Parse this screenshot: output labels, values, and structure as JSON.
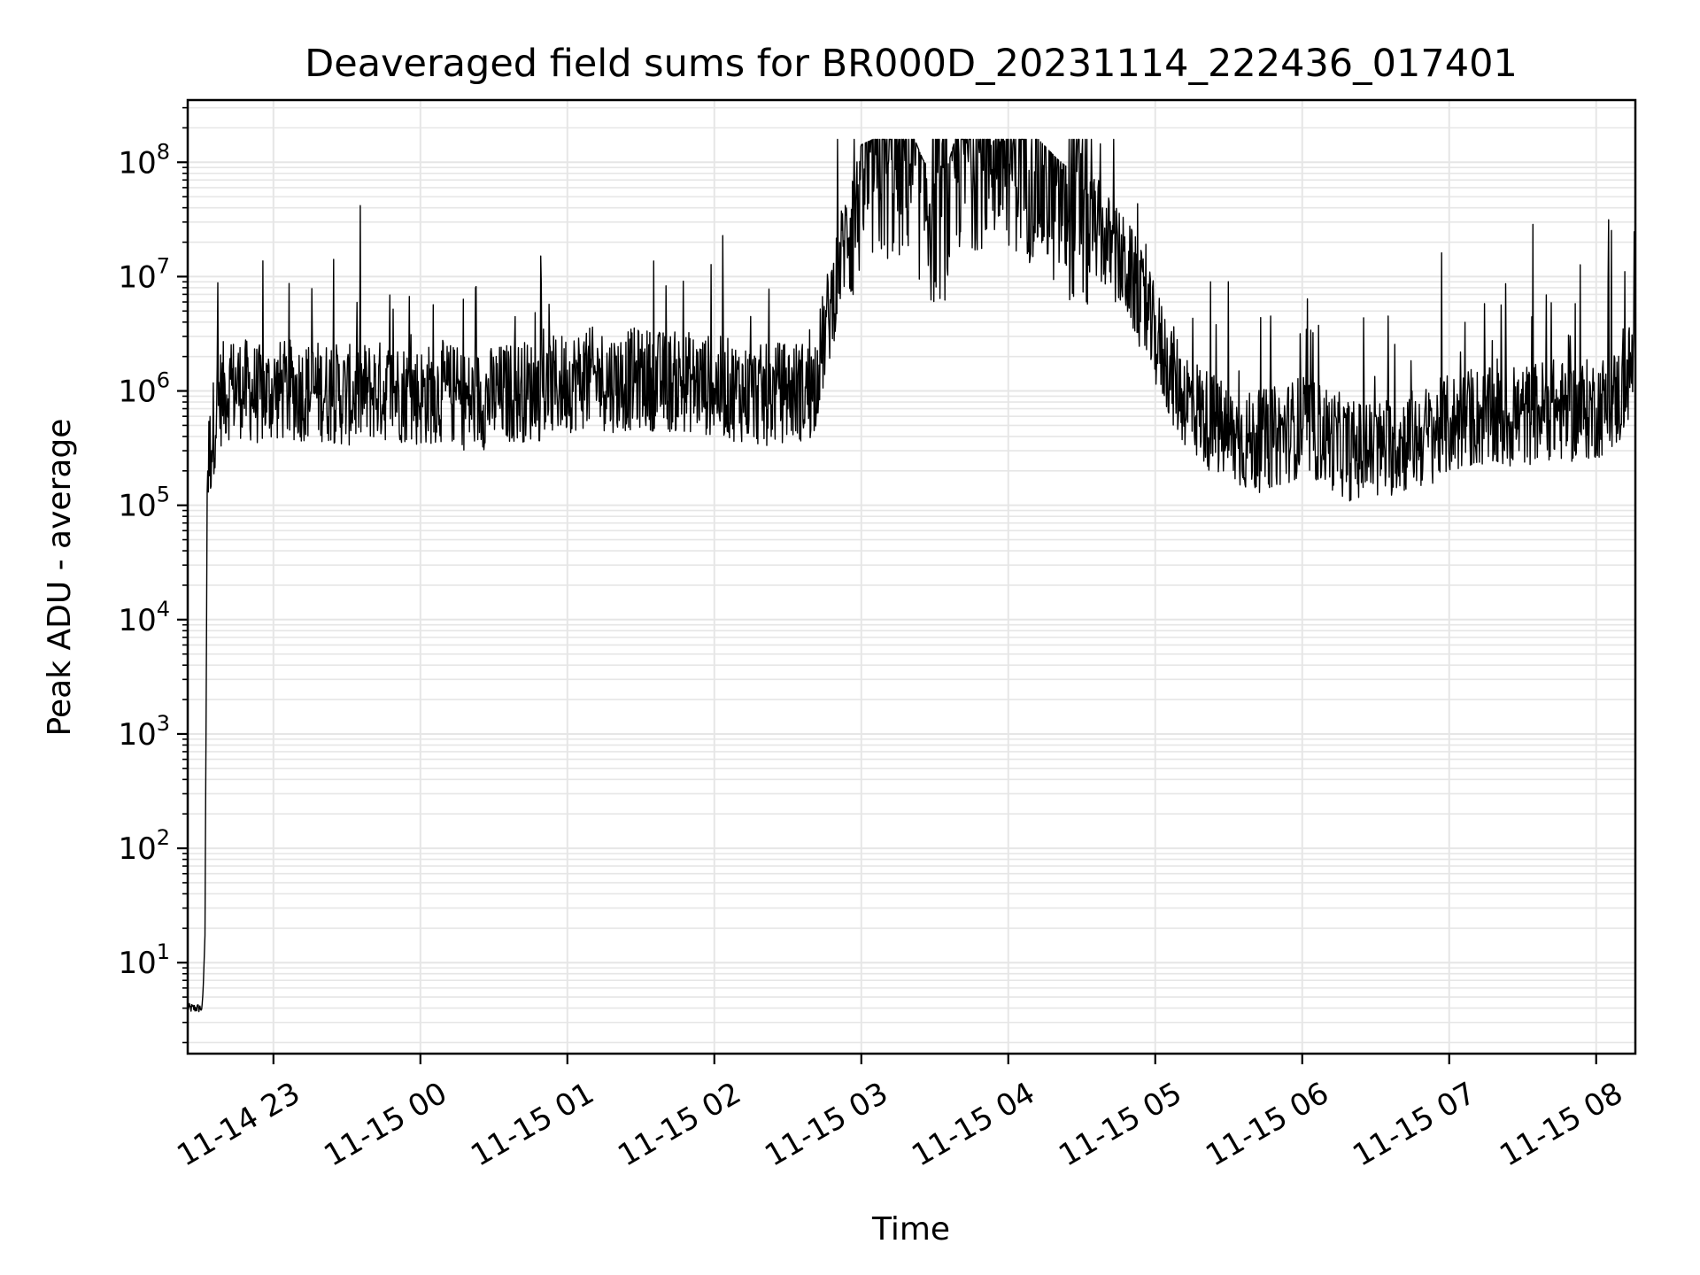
{
  "chart_data": {
    "type": "line",
    "title": "Deaveraged field sums for BR000D_20231114_222436_017401",
    "xlabel": "Time",
    "ylabel": "Peak ADU - average",
    "yscale": "log",
    "ylim": [
      1.6,
      350000000
    ],
    "xlim": [
      "2023-11-14 22:25",
      "2023-11-15 08:16"
    ],
    "grid": true,
    "line_color": "#000000",
    "grid_color": "#e6e6e6",
    "x_ticks": [
      {
        "value": "2023-11-14 23:00",
        "label": "11-14 23"
      },
      {
        "value": "2023-11-15 00:00",
        "label": "11-15 00"
      },
      {
        "value": "2023-11-15 01:00",
        "label": "11-15 01"
      },
      {
        "value": "2023-11-15 02:00",
        "label": "11-15 02"
      },
      {
        "value": "2023-11-15 03:00",
        "label": "11-15 03"
      },
      {
        "value": "2023-11-15 04:00",
        "label": "11-15 04"
      },
      {
        "value": "2023-11-15 05:00",
        "label": "11-15 05"
      },
      {
        "value": "2023-11-15 06:00",
        "label": "11-15 06"
      },
      {
        "value": "2023-11-15 07:00",
        "label": "11-15 07"
      },
      {
        "value": "2023-11-15 08:00",
        "label": "11-15 08"
      }
    ],
    "y_ticks": [
      {
        "value": 10,
        "base": "10",
        "exp": "1"
      },
      {
        "value": 100,
        "base": "10",
        "exp": "2"
      },
      {
        "value": 1000,
        "base": "10",
        "exp": "3"
      },
      {
        "value": 10000,
        "base": "10",
        "exp": "4"
      },
      {
        "value": 100000,
        "base": "10",
        "exp": "5"
      },
      {
        "value": 1000000,
        "base": "10",
        "exp": "6"
      },
      {
        "value": 10000000,
        "base": "10",
        "exp": "7"
      },
      {
        "value": 100000000,
        "base": "10",
        "exp": "8"
      }
    ],
    "series": [
      {
        "x": [
          "2023-11-14 22:25",
          "2023-11-14 22:30",
          "2023-11-14 22:31",
          "2023-11-14 22:32",
          "2023-11-14 22:33",
          "2023-11-14 22:35",
          "2023-11-14 22:37",
          "2023-11-14 22:40",
          "2023-11-14 22:45",
          "2023-11-14 22:50",
          "2023-11-14 22:55",
          "2023-11-14 23:00",
          "2023-11-14 23:10",
          "2023-11-14 23:20",
          "2023-11-14 23:30",
          "2023-11-14 23:40",
          "2023-11-14 23:50",
          "2023-11-15 00:00",
          "2023-11-15 00:10",
          "2023-11-15 00:20",
          "2023-11-15 00:30",
          "2023-11-15 00:40",
          "2023-11-15 00:50",
          "2023-11-15 01:00",
          "2023-11-15 01:10",
          "2023-11-15 01:20",
          "2023-11-15 01:30",
          "2023-11-15 01:40",
          "2023-11-15 01:50",
          "2023-11-15 02:00",
          "2023-11-15 02:10",
          "2023-11-15 02:20",
          "2023-11-15 02:30",
          "2023-11-15 02:40",
          "2023-11-15 02:45",
          "2023-11-15 02:50",
          "2023-11-15 02:55",
          "2023-11-15 03:00",
          "2023-11-15 03:10",
          "2023-11-15 03:20",
          "2023-11-15 03:25",
          "2023-11-15 03:30",
          "2023-11-15 03:35",
          "2023-11-15 03:40",
          "2023-11-15 03:50",
          "2023-11-15 04:00",
          "2023-11-15 04:10",
          "2023-11-15 04:20",
          "2023-11-15 04:30",
          "2023-11-15 04:40",
          "2023-11-15 04:50",
          "2023-11-15 05:00",
          "2023-11-15 05:10",
          "2023-11-15 05:20",
          "2023-11-15 05:30",
          "2023-11-15 05:40",
          "2023-11-15 05:50",
          "2023-11-15 06:00",
          "2023-11-15 06:10",
          "2023-11-15 06:20",
          "2023-11-15 06:30",
          "2023-11-15 06:40",
          "2023-11-15 06:50",
          "2023-11-15 07:00",
          "2023-11-15 07:10",
          "2023-11-15 07:20",
          "2023-11-15 07:30",
          "2023-11-15 07:40",
          "2023-11-15 07:50",
          "2023-11-15 08:00",
          "2023-11-15 08:10",
          "2023-11-15 08:16"
        ],
        "y": [
          4,
          4,
          4,
          15,
          200000,
          400000,
          800000,
          1000000,
          1100000,
          1000000,
          900000,
          1000000,
          1000000,
          1000000,
          900000,
          1000000,
          1000000,
          900000,
          1000000,
          800000,
          900000,
          1000000,
          1000000,
          1200000,
          1300000,
          1200000,
          1300000,
          1200000,
          1200000,
          1100000,
          1000000,
          900000,
          1000000,
          1000000,
          3000000,
          10000000,
          30000000,
          80000000,
          100000000,
          110000000,
          60000000,
          40000000,
          50000000,
          120000000,
          140000000,
          140000000,
          100000000,
          60000000,
          40000000,
          20000000,
          10000000,
          3000000,
          1000000,
          600000,
          400000,
          350000,
          400000,
          500000,
          400000,
          300000,
          300000,
          350000,
          400000,
          500000,
          600000,
          550000,
          600000,
          700000,
          650000,
          700000,
          900000,
          2000000
        ]
      }
    ]
  }
}
